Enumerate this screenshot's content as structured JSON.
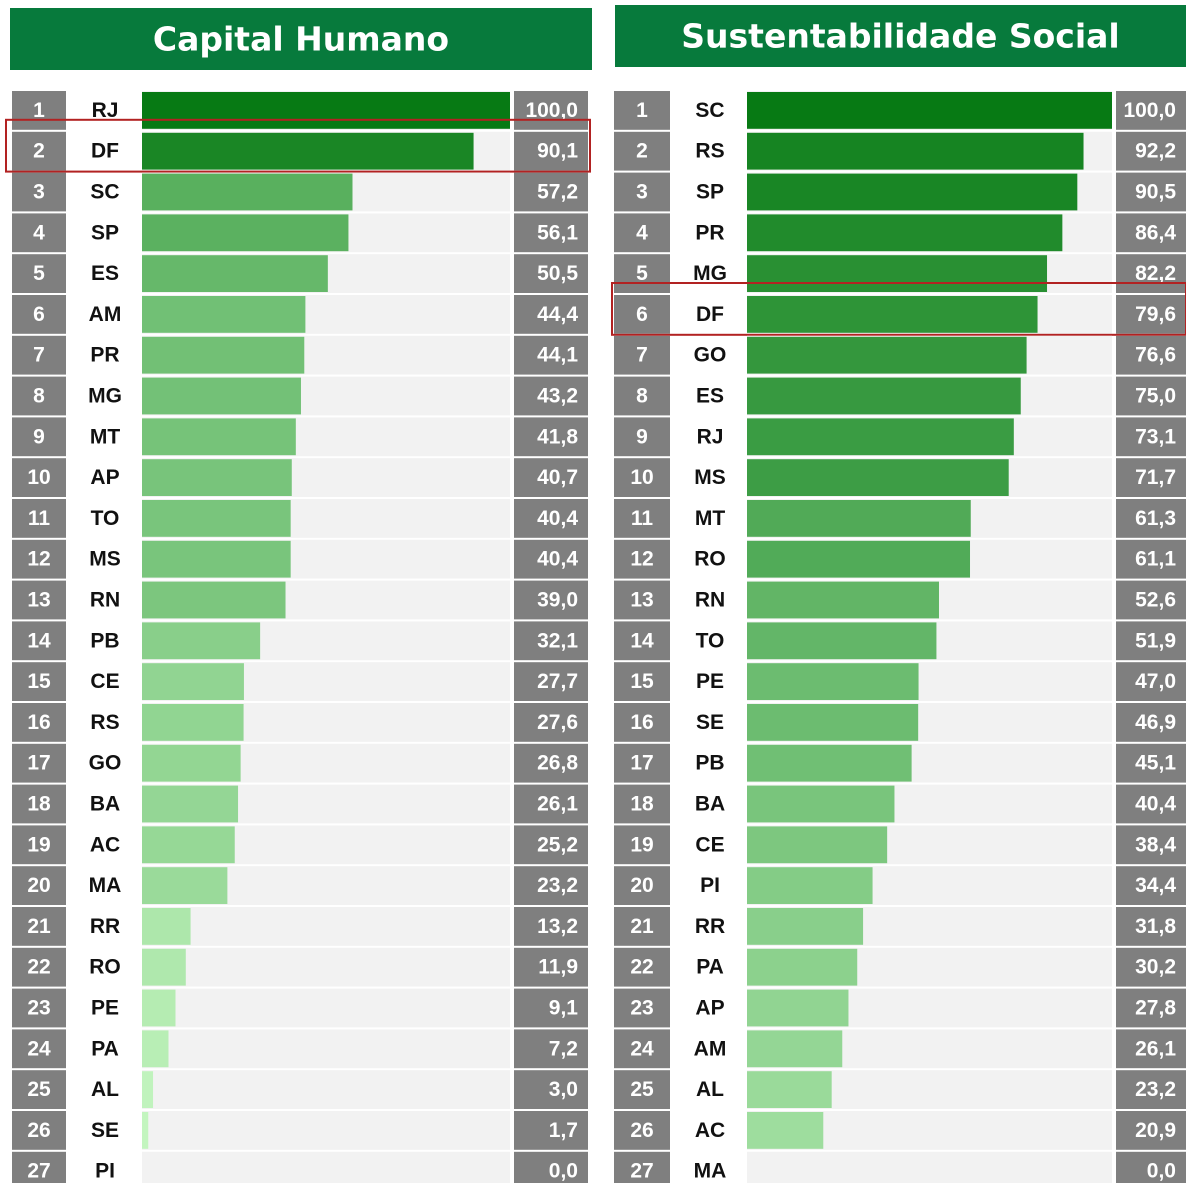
{
  "chart_data": [
    {
      "type": "bar",
      "orientation": "horizontal",
      "title": "Capital Humano",
      "ranks": [
        "1",
        "2",
        "3",
        "4",
        "5",
        "6",
        "7",
        "8",
        "9",
        "10",
        "11",
        "12",
        "13",
        "14",
        "15",
        "16",
        "17",
        "18",
        "19",
        "20",
        "21",
        "22",
        "23",
        "24",
        "25",
        "26",
        "27"
      ],
      "categories": [
        "RJ",
        "DF",
        "SC",
        "SP",
        "ES",
        "AM",
        "PR",
        "MG",
        "MT",
        "AP",
        "TO",
        "MS",
        "RN",
        "PB",
        "CE",
        "RS",
        "GO",
        "BA",
        "AC",
        "MA",
        "RR",
        "RO",
        "PE",
        "PA",
        "AL",
        "SE",
        "PI"
      ],
      "values": [
        100.0,
        90.1,
        57.2,
        56.1,
        50.5,
        44.4,
        44.1,
        43.2,
        41.8,
        40.7,
        40.4,
        40.4,
        39.0,
        32.1,
        27.7,
        27.6,
        26.8,
        26.1,
        25.2,
        23.2,
        13.2,
        11.9,
        9.1,
        7.2,
        3.0,
        1.7,
        0.0
      ],
      "value_labels": [
        "100,0",
        "90,1",
        "57,2",
        "56,1",
        "50,5",
        "44,4",
        "44,1",
        "43,2",
        "41,8",
        "40,7",
        "40,4",
        "40,4",
        "39,0",
        "32,1",
        "27,7",
        "27,6",
        "26,8",
        "26,1",
        "25,2",
        "23,2",
        "13,2",
        "11,9",
        "9,1",
        "7,2",
        "3,0",
        "1,7",
        "0,0"
      ],
      "xlim": [
        0,
        100
      ],
      "color_scale": {
        "min": "#c6f7c2",
        "max": "#077a14"
      },
      "highlight": "DF"
    },
    {
      "type": "bar",
      "orientation": "horizontal",
      "title": "Sustentabilidade Social",
      "ranks": [
        "1",
        "2",
        "3",
        "4",
        "5",
        "6",
        "7",
        "8",
        "9",
        "10",
        "11",
        "12",
        "13",
        "14",
        "15",
        "16",
        "17",
        "18",
        "19",
        "20",
        "21",
        "22",
        "23",
        "24",
        "25",
        "26",
        "27"
      ],
      "categories": [
        "SC",
        "RS",
        "SP",
        "PR",
        "MG",
        "DF",
        "GO",
        "ES",
        "RJ",
        "MS",
        "MT",
        "RO",
        "RN",
        "TO",
        "PE",
        "SE",
        "PB",
        "BA",
        "CE",
        "PI",
        "RR",
        "PA",
        "AP",
        "AM",
        "AL",
        "AC",
        "MA"
      ],
      "values": [
        100.0,
        92.2,
        90.5,
        86.4,
        82.2,
        79.6,
        76.6,
        75.0,
        73.1,
        71.7,
        61.3,
        61.1,
        52.6,
        51.9,
        47.0,
        46.9,
        45.1,
        40.4,
        38.4,
        34.4,
        31.8,
        30.2,
        27.8,
        26.1,
        23.2,
        20.9,
        0.0
      ],
      "value_labels": [
        "100,0",
        "92,2",
        "90,5",
        "86,4",
        "82,2",
        "79,6",
        "76,6",
        "75,0",
        "73,1",
        "71,7",
        "61,3",
        "61,1",
        "52,6",
        "51,9",
        "47,0",
        "46,9",
        "45,1",
        "40,4",
        "38,4",
        "34,4",
        "31,8",
        "30,2",
        "27,8",
        "26,1",
        "23,2",
        "20,9",
        "0,0"
      ],
      "xlim": [
        0,
        100
      ],
      "color_scale": {
        "min": "#c6f7c2",
        "max": "#077a14"
      },
      "highlight": "DF"
    }
  ]
}
